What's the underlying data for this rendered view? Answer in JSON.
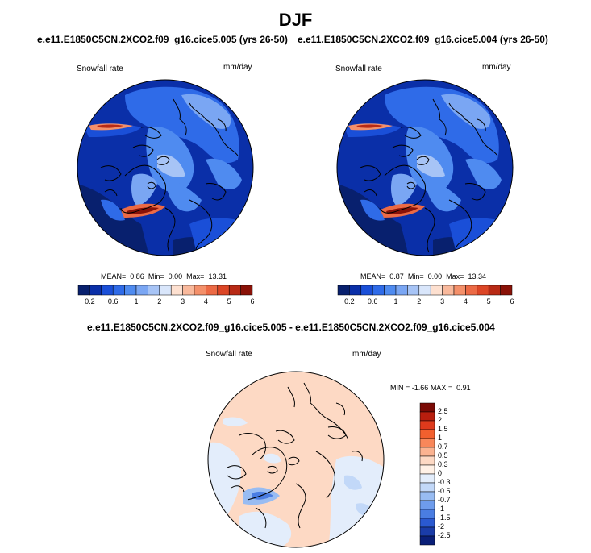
{
  "title": "DJF",
  "panels": [
    {
      "case": "e.e11.E1850C5CN.2XCO2.f09_g16.cice5.005 (yrs 26-50)",
      "variable": "Snowfall rate",
      "units": "mm/day",
      "stats": {
        "mean_label": "MEAN=",
        "mean": "0.86",
        "min_label": "Min=",
        "min": "0.00",
        "max_label": "Max=",
        "max": "13.31"
      }
    },
    {
      "case": "e.e11.E1850C5CN.2XCO2.f09_g16.cice5.004 (yrs 26-50)",
      "variable": "Snowfall rate",
      "units": "mm/day",
      "stats": {
        "mean_label": "MEAN=",
        "mean": "0.87",
        "min_label": "Min=",
        "min": "0.00",
        "max_label": "Max=",
        "max": "13.34"
      }
    }
  ],
  "abs_colorbar": {
    "colors": [
      "#08206e",
      "#0a2fa8",
      "#1a4fd8",
      "#2f6be8",
      "#4f8bf0",
      "#7aa6f3",
      "#a7c4f6",
      "#d9e6fb",
      "#fde0d0",
      "#f9b99c",
      "#f4906a",
      "#ec6a45",
      "#dc4626",
      "#b82a15",
      "#8a1208"
    ],
    "tick_labels": [
      "0.2",
      "0.6",
      "1",
      "2",
      "3",
      "4",
      "5",
      "6"
    ]
  },
  "diff_panel": {
    "case": "e.e11.E1850C5CN.2XCO2.f09_g16.cice5.005 - e.e11.E1850C5CN.2XCO2.f09_g16.cice5.004",
    "variable": "Snowfall rate",
    "units": "mm/day",
    "stats": {
      "min_label": "MIN =",
      "min": "-1.66",
      "max_label": "MAX =",
      "max": "0.91"
    }
  },
  "diff_colorbar": {
    "colors": [
      "#7a0a05",
      "#b81e0e",
      "#de3a1c",
      "#f2602e",
      "#f8875a",
      "#fbb391",
      "#fdd9c4",
      "#fff1e6",
      "#e3edfb",
      "#c2d8f8",
      "#98bcf2",
      "#6e9cec",
      "#4a7de2",
      "#2a59d0",
      "#1a3ca8",
      "#0a1f78"
    ],
    "tick_labels": [
      "2.5",
      "2",
      "1.5",
      "1",
      "0.7",
      "0.5",
      "0.3",
      "0",
      "-0.3",
      "-0.5",
      "-0.7",
      "-1",
      "-1.5",
      "-2",
      "-2.5"
    ]
  }
}
